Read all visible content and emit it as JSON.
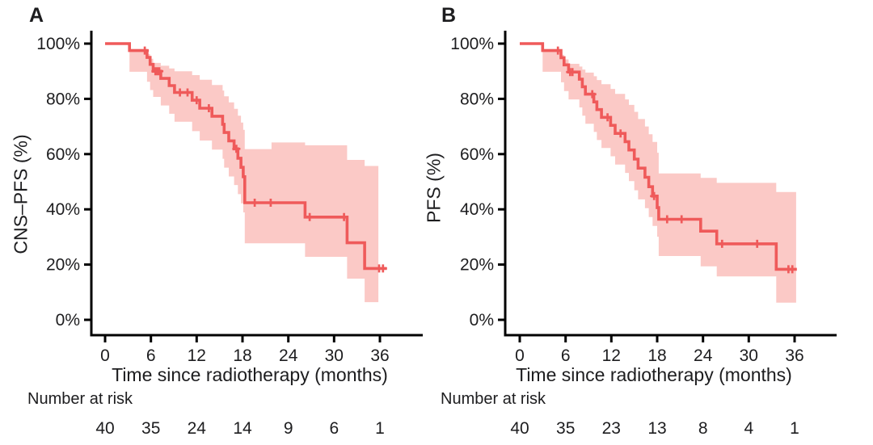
{
  "style": {
    "background": "#ffffff",
    "curve_color": "#ef5a5a",
    "band_color": "#fbc9c6",
    "axis_color": "#000000",
    "text_color": "#1d1d1f"
  },
  "chart_data": [
    {
      "type": "line",
      "subtype": "kaplan-meier-step",
      "panel_letter": "A",
      "title": "",
      "xlabel": "Time since radiotherapy (months)",
      "ylabel": "CNS–PFS (%)",
      "xlim": [
        0,
        38
      ],
      "ylim": [
        0,
        100
      ],
      "x_ticks": [
        0,
        6,
        12,
        18,
        24,
        30,
        36
      ],
      "y_ticks": [
        0,
        20,
        40,
        60,
        80,
        100
      ],
      "y_tick_labels": [
        "0%",
        "20%",
        "40%",
        "60%",
        "80%",
        "100%"
      ],
      "grid": false,
      "legend": false,
      "series": [
        {
          "name": "CNS-PFS",
          "color": "#ef5a5a",
          "ci_color": "#fbc9c6",
          "steps": [
            [
              0,
              100
            ],
            [
              3.2,
              97.5
            ],
            [
              5.5,
              95.0
            ],
            [
              5.9,
              92.5
            ],
            [
              6.3,
              90.0
            ],
            [
              7.3,
              87.4
            ],
            [
              8.4,
              84.8
            ],
            [
              9.1,
              82.3
            ],
            [
              11.4,
              79.5
            ],
            [
              12.4,
              76.6
            ],
            [
              14.0,
              73.7
            ],
            [
              15.4,
              70.8
            ],
            [
              15.6,
              67.8
            ],
            [
              16.2,
              64.8
            ],
            [
              16.9,
              61.9
            ],
            [
              17.4,
              58.5
            ],
            [
              17.8,
              55.2
            ],
            [
              18.1,
              51.8
            ],
            [
              18.3,
              42.4
            ],
            [
              26.2,
              37.2
            ],
            [
              31.7,
              27.9
            ],
            [
              34.0,
              18.6
            ]
          ],
          "end_time": 36.9,
          "censor_marks": [
            [
              5.2,
              97.5
            ],
            [
              6.6,
              90.0
            ],
            [
              6.85,
              90.0
            ],
            [
              7.1,
              90.0
            ],
            [
              9.8,
              82.3
            ],
            [
              10.8,
              82.3
            ],
            [
              12.0,
              79.5
            ],
            [
              13.6,
              76.6
            ],
            [
              17.2,
              61.9
            ],
            [
              19.6,
              42.4
            ],
            [
              21.7,
              42.4
            ],
            [
              26.8,
              37.2
            ],
            [
              31.3,
              37.2
            ],
            [
              35.9,
              18.6
            ],
            [
              36.4,
              18.6
            ]
          ],
          "ci_band": [
            [
              0,
              100,
              100
            ],
            [
              3.2,
              89.8,
              98.0
            ],
            [
              5.5,
              86.2,
              96.2
            ],
            [
              5.9,
              83.2,
              94.5
            ],
            [
              6.3,
              80.7,
              93.0
            ],
            [
              7.3,
              77.6,
              92.0
            ],
            [
              8.4,
              74.6,
              91.0
            ],
            [
              9.1,
              71.7,
              90.0
            ],
            [
              11.4,
              68.3,
              88.6
            ],
            [
              12.4,
              64.9,
              86.9
            ],
            [
              14.0,
              61.6,
              85.0
            ],
            [
              15.4,
              58.3,
              83.0
            ],
            [
              15.6,
              55.1,
              80.9
            ],
            [
              16.2,
              51.9,
              78.7
            ],
            [
              16.9,
              48.8,
              76.4
            ],
            [
              17.4,
              45.5,
              73.9
            ],
            [
              17.8,
              42.2,
              71.4
            ],
            [
              18.1,
              38.9,
              68.8
            ],
            [
              18.3,
              27.7,
              61.8
            ],
            [
              21.8,
              27.7,
              64.2
            ],
            [
              26.2,
              22.8,
              63.2
            ],
            [
              31.7,
              14.9,
              57.9
            ],
            [
              34.0,
              6.4,
              55.7
            ]
          ],
          "ci_end_time": 35.8
        }
      ],
      "number_at_risk": {
        "label": "Number at risk",
        "times": [
          0,
          6,
          12,
          18,
          24,
          30,
          36
        ],
        "counts": [
          40,
          35,
          24,
          14,
          9,
          6,
          1
        ]
      }
    },
    {
      "type": "line",
      "subtype": "kaplan-meier-step",
      "panel_letter": "B",
      "title": "",
      "xlabel": "Time since radiotherapy (months)",
      "ylabel": "PFS (%)",
      "xlim": [
        0,
        38
      ],
      "ylim": [
        0,
        100
      ],
      "x_ticks": [
        0,
        6,
        12,
        18,
        24,
        30,
        36
      ],
      "y_ticks": [
        0,
        20,
        40,
        60,
        80,
        100
      ],
      "y_tick_labels": [
        "0%",
        "20%",
        "40%",
        "60%",
        "80%",
        "100%"
      ],
      "grid": false,
      "legend": false,
      "series": [
        {
          "name": "PFS",
          "color": "#ef5a5a",
          "ci_color": "#fbc9c6",
          "steps": [
            [
              0,
              100
            ],
            [
              3.0,
              97.5
            ],
            [
              5.4,
              94.9
            ],
            [
              5.8,
              92.3
            ],
            [
              6.4,
              89.7
            ],
            [
              7.8,
              87.1
            ],
            [
              8.2,
              84.4
            ],
            [
              8.6,
              81.7
            ],
            [
              9.7,
              78.9
            ],
            [
              10.1,
              76.1
            ],
            [
              10.7,
              73.3
            ],
            [
              11.9,
              70.4
            ],
            [
              12.5,
              67.5
            ],
            [
              13.8,
              64.5
            ],
            [
              14.3,
              61.5
            ],
            [
              15.0,
              58.2
            ],
            [
              15.5,
              54.9
            ],
            [
              16.4,
              51.6
            ],
            [
              16.9,
              48.2
            ],
            [
              17.4,
              44.8
            ],
            [
              18.0,
              40.6
            ],
            [
              18.2,
              36.4
            ],
            [
              23.7,
              32.1
            ],
            [
              25.8,
              27.5
            ],
            [
              33.6,
              18.3
            ]
          ],
          "end_time": 36.3,
          "censor_marks": [
            [
              5.0,
              97.5
            ],
            [
              6.6,
              89.7
            ],
            [
              6.9,
              89.7
            ],
            [
              9.5,
              81.7
            ],
            [
              11.5,
              73.3
            ],
            [
              13.2,
              67.5
            ],
            [
              17.6,
              44.8
            ],
            [
              19.3,
              36.4
            ],
            [
              21.2,
              36.4
            ],
            [
              26.5,
              27.5
            ],
            [
              31.1,
              27.5
            ],
            [
              35.2,
              18.3
            ],
            [
              35.7,
              18.3
            ]
          ],
          "ci_band": [
            [
              0,
              100,
              100
            ],
            [
              3.0,
              89.8,
              98.0
            ],
            [
              5.4,
              86.0,
              96.0
            ],
            [
              5.8,
              82.8,
              94.3
            ],
            [
              6.4,
              79.8,
              92.7
            ],
            [
              7.8,
              76.9,
              91.7
            ],
            [
              8.2,
              73.9,
              90.6
            ],
            [
              8.6,
              71.0,
              89.5
            ],
            [
              9.7,
              68.0,
              88.2
            ],
            [
              10.1,
              65.1,
              86.8
            ],
            [
              10.7,
              62.2,
              85.3
            ],
            [
              11.9,
              59.2,
              83.6
            ],
            [
              12.5,
              56.2,
              81.8
            ],
            [
              13.8,
              53.2,
              79.8
            ],
            [
              14.3,
              50.2,
              77.8
            ],
            [
              15.0,
              46.9,
              75.3
            ],
            [
              15.5,
              43.6,
              72.7
            ],
            [
              16.4,
              40.4,
              70.0
            ],
            [
              16.9,
              37.2,
              67.2
            ],
            [
              17.4,
              34.0,
              64.4
            ],
            [
              18.0,
              30.1,
              60.5
            ],
            [
              18.2,
              23.1,
              53.0
            ],
            [
              23.7,
              19.4,
              51.4
            ],
            [
              25.8,
              15.7,
              49.6
            ],
            [
              33.6,
              6.2,
              46.3
            ]
          ],
          "ci_end_time": 36.2
        }
      ],
      "number_at_risk": {
        "label": "Number at risk",
        "times": [
          0,
          6,
          12,
          18,
          24,
          30,
          36
        ],
        "counts": [
          40,
          35,
          23,
          13,
          8,
          4,
          1
        ]
      }
    }
  ]
}
